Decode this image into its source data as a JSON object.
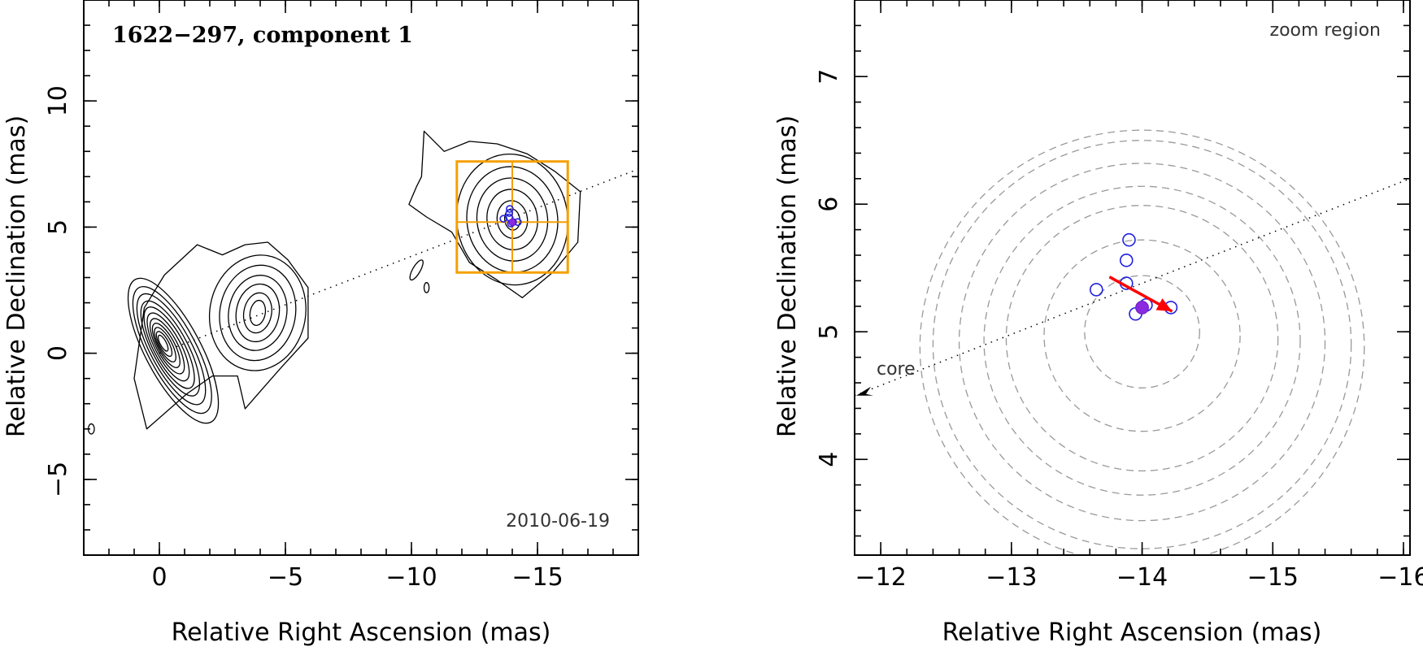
{
  "chart_data": [
    {
      "type": "scatter",
      "title": "1622−297, component 1",
      "epoch": "2010-06-19",
      "xlabel": "Relative Right Ascension (mas)",
      "ylabel": "Relative Declination (mas)",
      "xlim": [
        3,
        -19
      ],
      "ylim": [
        -8,
        14
      ],
      "xticks": [
        0,
        -5,
        -10,
        -15
      ],
      "xtick_labels": [
        "0",
        "−5",
        "−10",
        "−15"
      ],
      "yticks": [
        -5,
        0,
        5,
        10
      ],
      "ytick_labels": [
        "−5",
        "0",
        "5",
        "10"
      ],
      "contours": "radio intensity contours of the jet (core near 0,0 plus jet emission toward the north-west)",
      "ridge_line": {
        "from": [
          0,
          0
        ],
        "to": [
          -19,
          7.3
        ]
      },
      "zoom_box": {
        "ra": [
          -11.8,
          -16.2
        ],
        "dec": [
          3.2,
          7.6
        ],
        "cross": [
          -14.0,
          5.2
        ]
      },
      "components": [
        {
          "ra": -13.65,
          "dec": 5.33
        },
        {
          "ra": -13.88,
          "dec": 5.56
        },
        {
          "ra": -13.9,
          "dec": 5.72
        },
        {
          "ra": -13.88,
          "dec": 5.38
        },
        {
          "ra": -13.95,
          "dec": 5.14
        },
        {
          "ra": -14.03,
          "dec": 5.2
        },
        {
          "ra": -14.22,
          "dec": 5.2
        }
      ],
      "current_component": {
        "ra": -14.0,
        "dec": 5.19
      }
    },
    {
      "type": "scatter",
      "label": "zoom region",
      "core_label": "core",
      "xlabel": "Relative Right Ascension (mas)",
      "ylabel": "Relative Declination (mas)",
      "xlim": [
        -11.8,
        -16.05
      ],
      "ylim": [
        3.25,
        7.6
      ],
      "xticks": [
        -12,
        -13,
        -14,
        -15,
        -16
      ],
      "xtick_labels": [
        "−12",
        "−13",
        "−14",
        "−15",
        "−16"
      ],
      "yticks": [
        4,
        5,
        6,
        7
      ],
      "ytick_labels": [
        "4",
        "5",
        "6",
        "7"
      ],
      "components": [
        {
          "ra": -13.65,
          "dec": 5.33
        },
        {
          "ra": -13.88,
          "dec": 5.56
        },
        {
          "ra": -13.9,
          "dec": 5.72
        },
        {
          "ra": -13.88,
          "dec": 5.38
        },
        {
          "ra": -13.95,
          "dec": 5.14
        },
        {
          "ra": -14.03,
          "dec": 5.21
        },
        {
          "ra": -14.22,
          "dec": 5.19
        }
      ],
      "current_component": {
        "ra": -14.0,
        "dec": 5.19
      },
      "velocity_arrow": {
        "from": [
          -13.75,
          5.43
        ],
        "to": [
          -14.23,
          5.16
        ]
      },
      "ridge_line": {
        "from": [
          -11.8,
          4.5
        ],
        "to": [
          -16.05,
          6.2
        ]
      },
      "uncertainty_circles": [
        {
          "ra": -14.0,
          "dec": 5.0,
          "r": 0.44
        },
        {
          "ra": -14.0,
          "dec": 4.97,
          "r": 0.75
        },
        {
          "ra": -14.0,
          "dec": 4.95,
          "r": 1.04
        },
        {
          "ra": -14.0,
          "dec": 4.93,
          "r": 1.21
        },
        {
          "ra": -14.0,
          "dec": 4.92,
          "r": 1.4
        },
        {
          "ra": -14.0,
          "dec": 4.9,
          "r": 1.6
        },
        {
          "ra": -14.0,
          "dec": 4.88,
          "r": 1.7
        }
      ],
      "colors": {
        "components": "#2020e0",
        "current": "#8a2be2",
        "arrow": "#ff0000",
        "circles": "#999999",
        "zoom_box": "#f5a000"
      }
    }
  ]
}
